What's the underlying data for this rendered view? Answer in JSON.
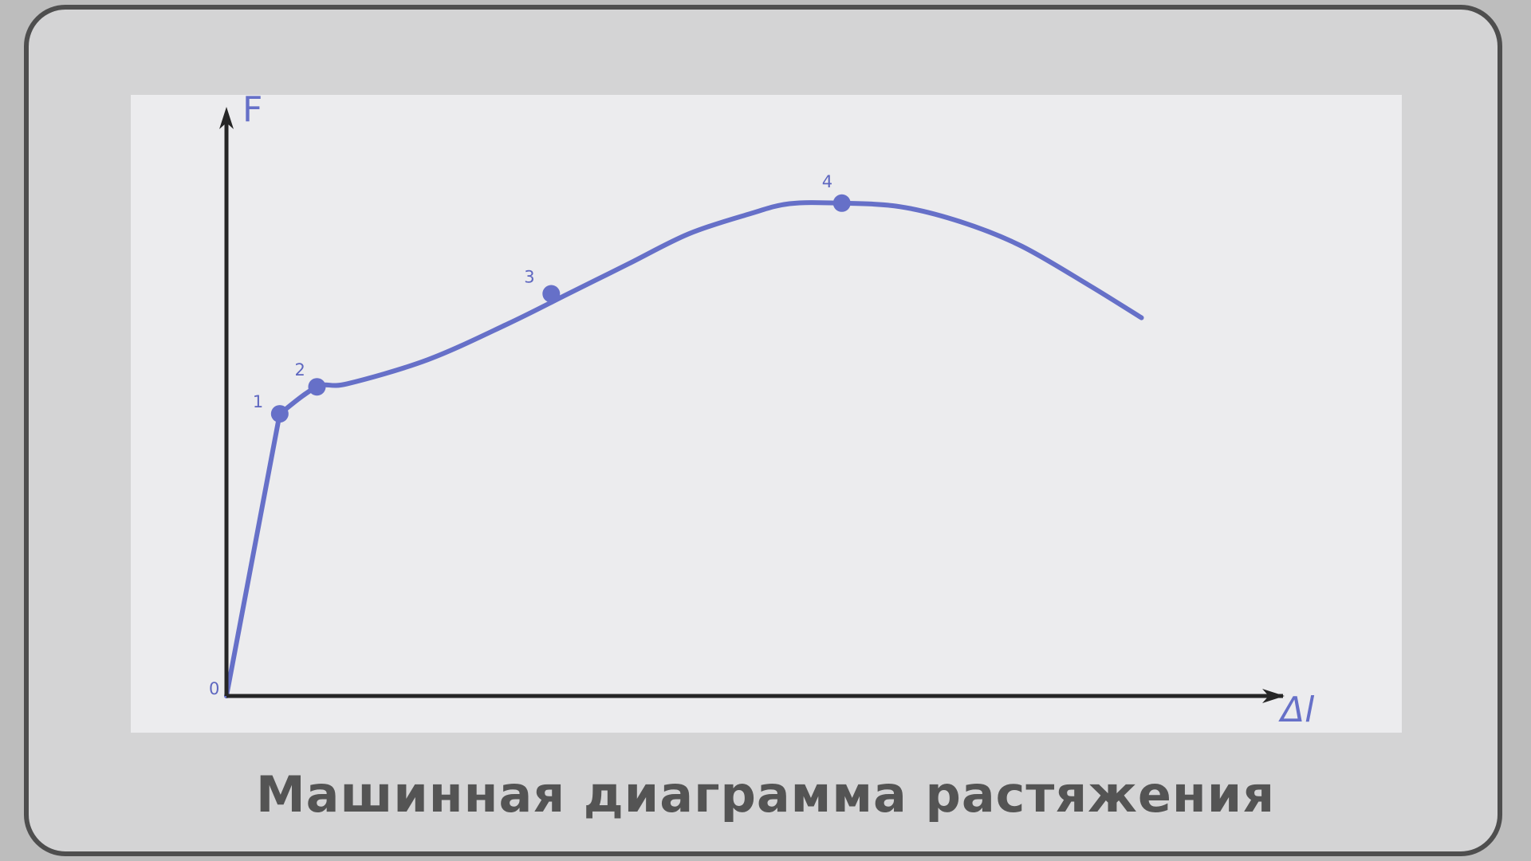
{
  "caption": "Машинная диаграмма растяжения",
  "chart_data": {
    "type": "line",
    "title": "Машинная диаграмма растяжения",
    "xlabel": "Δl",
    "ylabel": "F",
    "origin_label": "0",
    "xlim": [
      0,
      100
    ],
    "ylim": [
      0,
      100
    ],
    "grid": false,
    "legend": "none",
    "series": [
      {
        "x": [
          0,
          5.3,
          9,
          12,
          20,
          28,
          34,
          40,
          46,
          52,
          56,
          61,
          67,
          73,
          79,
          85.7,
          91
        ],
        "y": [
          0,
          47,
          51.5,
          52,
          56,
          62,
          67,
          72,
          77,
          80.3,
          82,
          82.1,
          81.5,
          79,
          75,
          68.5,
          63
        ]
      }
    ],
    "points": [
      {
        "label": "1",
        "x": 5.3,
        "y": 47
      },
      {
        "label": "2",
        "x": 9,
        "y": 51.5
      },
      {
        "label": "3",
        "x": 32.3,
        "y": 67
      },
      {
        "label": "4",
        "x": 61.2,
        "y": 82.1
      }
    ],
    "colors": {
      "curve": "#6670c8",
      "axes": "#262626",
      "labels": "#5e67c0"
    }
  }
}
